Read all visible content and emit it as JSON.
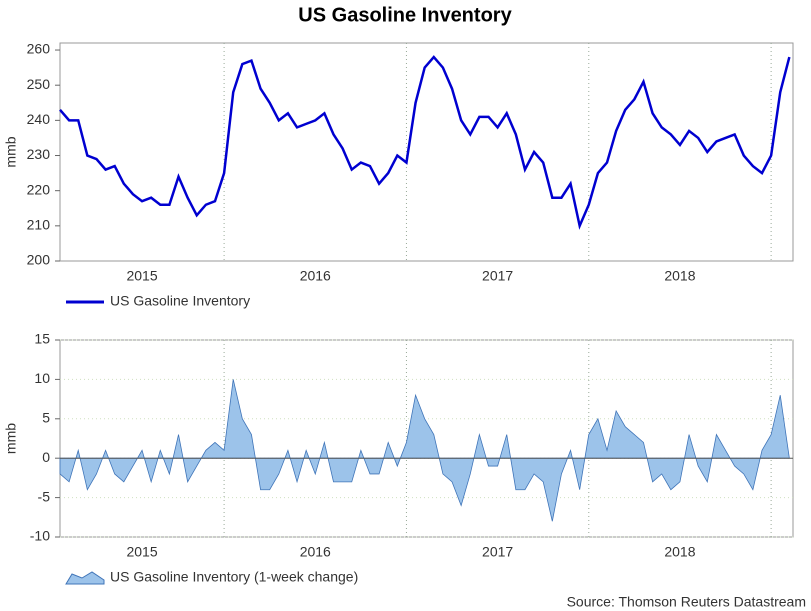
{
  "chart_data": [
    {
      "type": "line",
      "title": "US Gasoline Inventory",
      "ylabel": "mmb",
      "x": [
        2015.1,
        2015.15,
        2015.2,
        2015.25,
        2015.3,
        2015.35,
        2015.4,
        2015.45,
        2015.5,
        2015.55,
        2015.6,
        2015.65,
        2015.7,
        2015.75,
        2015.8,
        2015.85,
        2015.9,
        2015.95,
        2016.0,
        2016.05,
        2016.1,
        2016.15,
        2016.2,
        2016.25,
        2016.3,
        2016.35,
        2016.4,
        2016.45,
        2016.5,
        2016.55,
        2016.6,
        2016.65,
        2016.7,
        2016.75,
        2016.8,
        2016.85,
        2016.9,
        2016.95,
        2017.0,
        2017.05,
        2017.1,
        2017.15,
        2017.2,
        2017.25,
        2017.3,
        2017.35,
        2017.4,
        2017.45,
        2017.5,
        2017.55,
        2017.6,
        2017.65,
        2017.7,
        2017.75,
        2017.8,
        2017.85,
        2017.9,
        2017.95,
        2018.0,
        2018.05,
        2018.1,
        2018.15,
        2018.2,
        2018.25,
        2018.3,
        2018.35,
        2018.4,
        2018.45,
        2018.5,
        2018.55,
        2018.6,
        2018.65,
        2018.7,
        2018.75,
        2018.8,
        2018.85,
        2018.9,
        2018.95,
        2019.0,
        2019.05,
        2019.1
      ],
      "series": [
        {
          "name": "US Gasoline Inventory",
          "color": "#0000d0",
          "values": [
            243,
            240,
            240,
            230,
            229,
            226,
            227,
            222,
            219,
            217,
            218,
            216,
            216,
            224,
            218,
            213,
            216,
            217,
            225,
            248,
            256,
            257,
            249,
            245,
            240,
            242,
            238,
            239,
            240,
            242,
            236,
            232,
            226,
            228,
            227,
            222,
            225,
            230,
            228,
            245,
            255,
            258,
            255,
            249,
            240,
            236,
            241,
            241,
            238,
            242,
            236,
            226,
            231,
            228,
            218,
            218,
            222,
            210,
            216,
            225,
            228,
            237,
            243,
            246,
            251,
            242,
            238,
            236,
            233,
            237,
            235,
            231,
            234,
            235,
            236,
            230,
            227,
            225,
            230,
            248,
            258
          ]
        }
      ],
      "xlim": [
        2015.1,
        2019.12
      ],
      "xticks": [
        {
          "value": 2015.55,
          "label": "2015"
        },
        {
          "value": 2016.5,
          "label": "2016"
        },
        {
          "value": 2017.5,
          "label": "2017"
        },
        {
          "value": 2018.5,
          "label": "2018"
        }
      ],
      "xgrid": [
        2016,
        2017,
        2018,
        2019
      ],
      "ylim": [
        200,
        262
      ],
      "yticks": [
        200,
        210,
        220,
        230,
        240,
        250,
        260
      ],
      "grid": false
    },
    {
      "type": "area",
      "ylabel": "mmb",
      "source": "Source: Thomson Reuters Datastream",
      "x": [
        2015.1,
        2015.15,
        2015.2,
        2015.25,
        2015.3,
        2015.35,
        2015.4,
        2015.45,
        2015.5,
        2015.55,
        2015.6,
        2015.65,
        2015.7,
        2015.75,
        2015.8,
        2015.85,
        2015.9,
        2015.95,
        2016.0,
        2016.05,
        2016.1,
        2016.15,
        2016.2,
        2016.25,
        2016.3,
        2016.35,
        2016.4,
        2016.45,
        2016.5,
        2016.55,
        2016.6,
        2016.65,
        2016.7,
        2016.75,
        2016.8,
        2016.85,
        2016.9,
        2016.95,
        2017.0,
        2017.05,
        2017.1,
        2017.15,
        2017.2,
        2017.25,
        2017.3,
        2017.35,
        2017.4,
        2017.45,
        2017.5,
        2017.55,
        2017.6,
        2017.65,
        2017.7,
        2017.75,
        2017.8,
        2017.85,
        2017.9,
        2017.95,
        2018.0,
        2018.05,
        2018.1,
        2018.15,
        2018.2,
        2018.25,
        2018.3,
        2018.35,
        2018.4,
        2018.45,
        2018.5,
        2018.55,
        2018.6,
        2018.65,
        2018.7,
        2018.75,
        2018.8,
        2018.85,
        2018.9,
        2018.95,
        2019.0,
        2019.05,
        2019.1
      ],
      "series": [
        {
          "name": "US Gasoline Inventory (1-week change)",
          "color": "#9cc3ea",
          "values": [
            -2,
            -3,
            1,
            -4,
            -2,
            1,
            -2,
            -3,
            -1,
            1,
            -3,
            1,
            -2,
            3,
            -3,
            -1,
            1,
            2,
            1,
            10,
            5,
            3,
            -4,
            -4,
            -2,
            1,
            -3,
            1,
            -2,
            2,
            -3,
            -3,
            -3,
            1,
            -2,
            -2,
            2,
            -1,
            2,
            8,
            5,
            3,
            -2,
            -3,
            -6,
            -2,
            3,
            -1,
            -1,
            3,
            -4,
            -4,
            -2,
            -3,
            -8,
            -2,
            1,
            -4,
            3,
            5,
            1,
            6,
            4,
            3,
            2,
            -3,
            -2,
            -4,
            -3,
            3,
            -1,
            -3,
            3,
            1,
            -1,
            -2,
            -4,
            1,
            3,
            8,
            0
          ]
        }
      ],
      "xlim": [
        2015.1,
        2019.12
      ],
      "xticks": [
        {
          "value": 2015.55,
          "label": "2015"
        },
        {
          "value": 2016.5,
          "label": "2016"
        },
        {
          "value": 2017.5,
          "label": "2017"
        },
        {
          "value": 2018.5,
          "label": "2018"
        }
      ],
      "xgrid": [
        2016,
        2017,
        2018,
        2019
      ],
      "ylim": [
        -10,
        15
      ],
      "yticks": [
        -10,
        -5,
        0,
        5,
        10,
        15
      ],
      "grid": true
    }
  ]
}
